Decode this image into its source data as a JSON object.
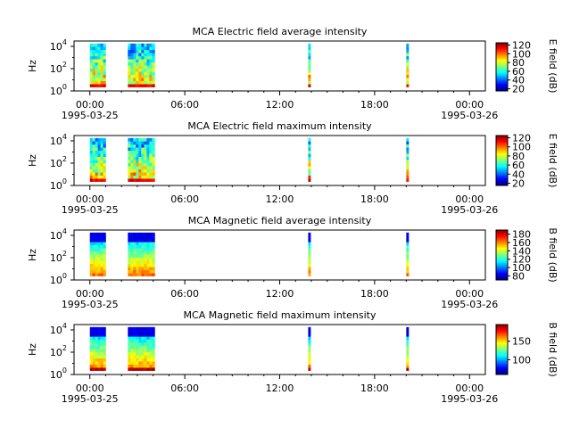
{
  "figure": {
    "panels": [
      {
        "title": "MCA  Electric field average intensity",
        "ylabel": "Hz",
        "cbar_label": "E field (dB)",
        "cbar_ticks": [
          "20",
          "40",
          "60",
          "80",
          "100",
          "120"
        ],
        "cbar_range": [
          15,
          125
        ],
        "xticks": [
          "00:00",
          "06:00",
          "12:00",
          "18:00",
          "00:00"
        ],
        "date_left": "1995-03-25",
        "date_right": "1995-03-26",
        "ytick_base": "10",
        "ytick_exps": [
          "0",
          "2",
          "4"
        ]
      },
      {
        "title": "MCA  Electric field maximum intensity",
        "ylabel": "Hz",
        "cbar_label": "E field (dB)",
        "cbar_ticks": [
          "20",
          "40",
          "60",
          "80",
          "100",
          "120"
        ],
        "cbar_range": [
          15,
          125
        ],
        "xticks": [
          "00:00",
          "06:00",
          "12:00",
          "18:00",
          "00:00"
        ],
        "date_left": "1995-03-25",
        "date_right": "1995-03-26",
        "ytick_base": "10",
        "ytick_exps": [
          "0",
          "2",
          "4"
        ]
      },
      {
        "title": "MCA  Magnetic field average intensity",
        "ylabel": "Hz",
        "cbar_label": "B field (dB)",
        "cbar_ticks": [
          "80",
          "100",
          "120",
          "140",
          "160",
          "180"
        ],
        "cbar_range": [
          70,
          190
        ],
        "xticks": [
          "00:00",
          "06:00",
          "12:00",
          "18:00",
          "00:00"
        ],
        "date_left": "1995-03-25",
        "date_right": "1995-03-26",
        "ytick_base": "10",
        "ytick_exps": [
          "0",
          "2",
          "4"
        ]
      },
      {
        "title": "MCA  Magnetic field maximum intensity",
        "ylabel": "Hz",
        "cbar_label": "B field (dB)",
        "cbar_ticks": [
          "100",
          "150"
        ],
        "cbar_range": [
          60,
          195
        ],
        "xticks": [
          "00:00",
          "06:00",
          "12:00",
          "18:00",
          "00:00"
        ],
        "date_left": "1995-03-25",
        "date_right": "1995-03-26",
        "ytick_base": "10",
        "ytick_exps": [
          "0",
          "2",
          "4"
        ]
      }
    ]
  },
  "chart_data": [
    {
      "type": "heatmap",
      "title": "MCA  Electric field average intensity",
      "xlabel": "",
      "ylabel": "Hz",
      "x_range_hours": [
        -1,
        25
      ],
      "y_scale": "log",
      "ylim_hz": [
        1,
        30000
      ],
      "colorbar": {
        "label": "E field (dB)",
        "range": [
          15,
          125
        ],
        "colormap": "jet"
      },
      "data_intervals_hours": [
        [
          0.0,
          1.0
        ],
        [
          2.4,
          4.1
        ],
        [
          13.8,
          13.95
        ],
        [
          20.0,
          20.15
        ]
      ],
      "intensity_note": "approx. 90-110 dB at low frequencies, 30-60 dB at high frequencies"
    },
    {
      "type": "heatmap",
      "title": "MCA  Electric field maximum intensity",
      "xlabel": "",
      "ylabel": "Hz",
      "x_range_hours": [
        -1,
        25
      ],
      "y_scale": "log",
      "ylim_hz": [
        1,
        30000
      ],
      "colorbar": {
        "label": "E field (dB)",
        "range": [
          15,
          125
        ],
        "colormap": "jet"
      },
      "data_intervals_hours": [
        [
          0.0,
          1.0
        ],
        [
          2.4,
          4.1
        ],
        [
          13.8,
          13.95
        ],
        [
          20.0,
          20.15
        ]
      ],
      "intensity_note": "approx. 90-110 dB at low frequencies, 40-70 dB at high frequencies"
    },
    {
      "type": "heatmap",
      "title": "MCA  Magnetic field average intensity",
      "xlabel": "",
      "ylabel": "Hz",
      "x_range_hours": [
        -1,
        25
      ],
      "y_scale": "log",
      "ylim_hz": [
        1,
        30000
      ],
      "colorbar": {
        "label": "B field (dB)",
        "range": [
          70,
          190
        ],
        "colormap": "jet"
      },
      "data_intervals_hours": [
        [
          0.0,
          1.0
        ],
        [
          2.4,
          4.1
        ],
        [
          13.8,
          13.95
        ],
        [
          20.0,
          20.15
        ]
      ],
      "intensity_note": "approx. 140-160 dB at low frequencies, 80-100 dB at high frequencies"
    },
    {
      "type": "heatmap",
      "title": "MCA  Magnetic field maximum intensity",
      "xlabel": "",
      "ylabel": "Hz",
      "x_range_hours": [
        -1,
        25
      ],
      "y_scale": "log",
      "ylim_hz": [
        1,
        30000
      ],
      "colorbar": {
        "label": "B field (dB)",
        "range": [
          60,
          195
        ],
        "colormap": "jet"
      },
      "data_intervals_hours": [
        [
          0.0,
          1.0
        ],
        [
          2.4,
          4.1
        ],
        [
          13.8,
          13.95
        ],
        [
          20.0,
          20.15
        ]
      ],
      "intensity_note": "approx. 150-180 dB at low frequencies, 80-100 dB at high frequencies"
    }
  ]
}
